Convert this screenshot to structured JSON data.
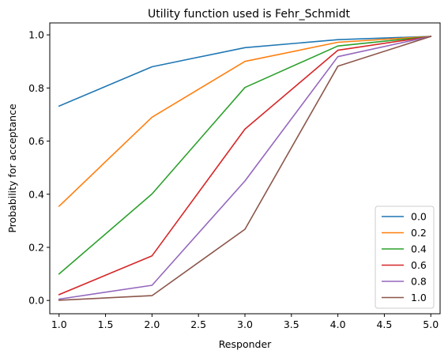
{
  "chart_data": {
    "type": "line",
    "title": "Utility function used is Fehr_Schmidt",
    "xlabel": "Responder",
    "ylabel": "Probability for acceptance",
    "x": [
      1.0,
      2.0,
      3.0,
      4.0,
      5.0
    ],
    "xlim": [
      0.9,
      5.1
    ],
    "ylim": [
      -0.05,
      1.045
    ],
    "xticks": [
      "1.0",
      "1.5",
      "2.0",
      "2.5",
      "3.0",
      "3.5",
      "4.0",
      "4.5",
      "5.0"
    ],
    "yticks": [
      "0.0",
      "0.2",
      "0.4",
      "0.6",
      "0.8",
      "1.0"
    ],
    "grid": false,
    "legend_position": "lower right",
    "series": [
      {
        "name": "0.0",
        "color": "#1f77b4",
        "values": [
          0.732,
          0.88,
          0.952,
          0.982,
          0.994
        ]
      },
      {
        "name": "0.2",
        "color": "#ff7f0e",
        "values": [
          0.355,
          0.69,
          0.9,
          0.972,
          0.994
        ]
      },
      {
        "name": "0.4",
        "color": "#2ca02c",
        "values": [
          0.1,
          0.401,
          0.802,
          0.958,
          0.994
        ]
      },
      {
        "name": "0.6",
        "color": "#d62728",
        "values": [
          0.022,
          0.168,
          0.645,
          0.942,
          0.994
        ]
      },
      {
        "name": "0.8",
        "color": "#9467bd",
        "values": [
          0.005,
          0.057,
          0.45,
          0.918,
          0.994
        ]
      },
      {
        "name": "1.0",
        "color": "#8c564b",
        "values": [
          0.001,
          0.018,
          0.268,
          0.882,
          0.994
        ]
      }
    ]
  }
}
